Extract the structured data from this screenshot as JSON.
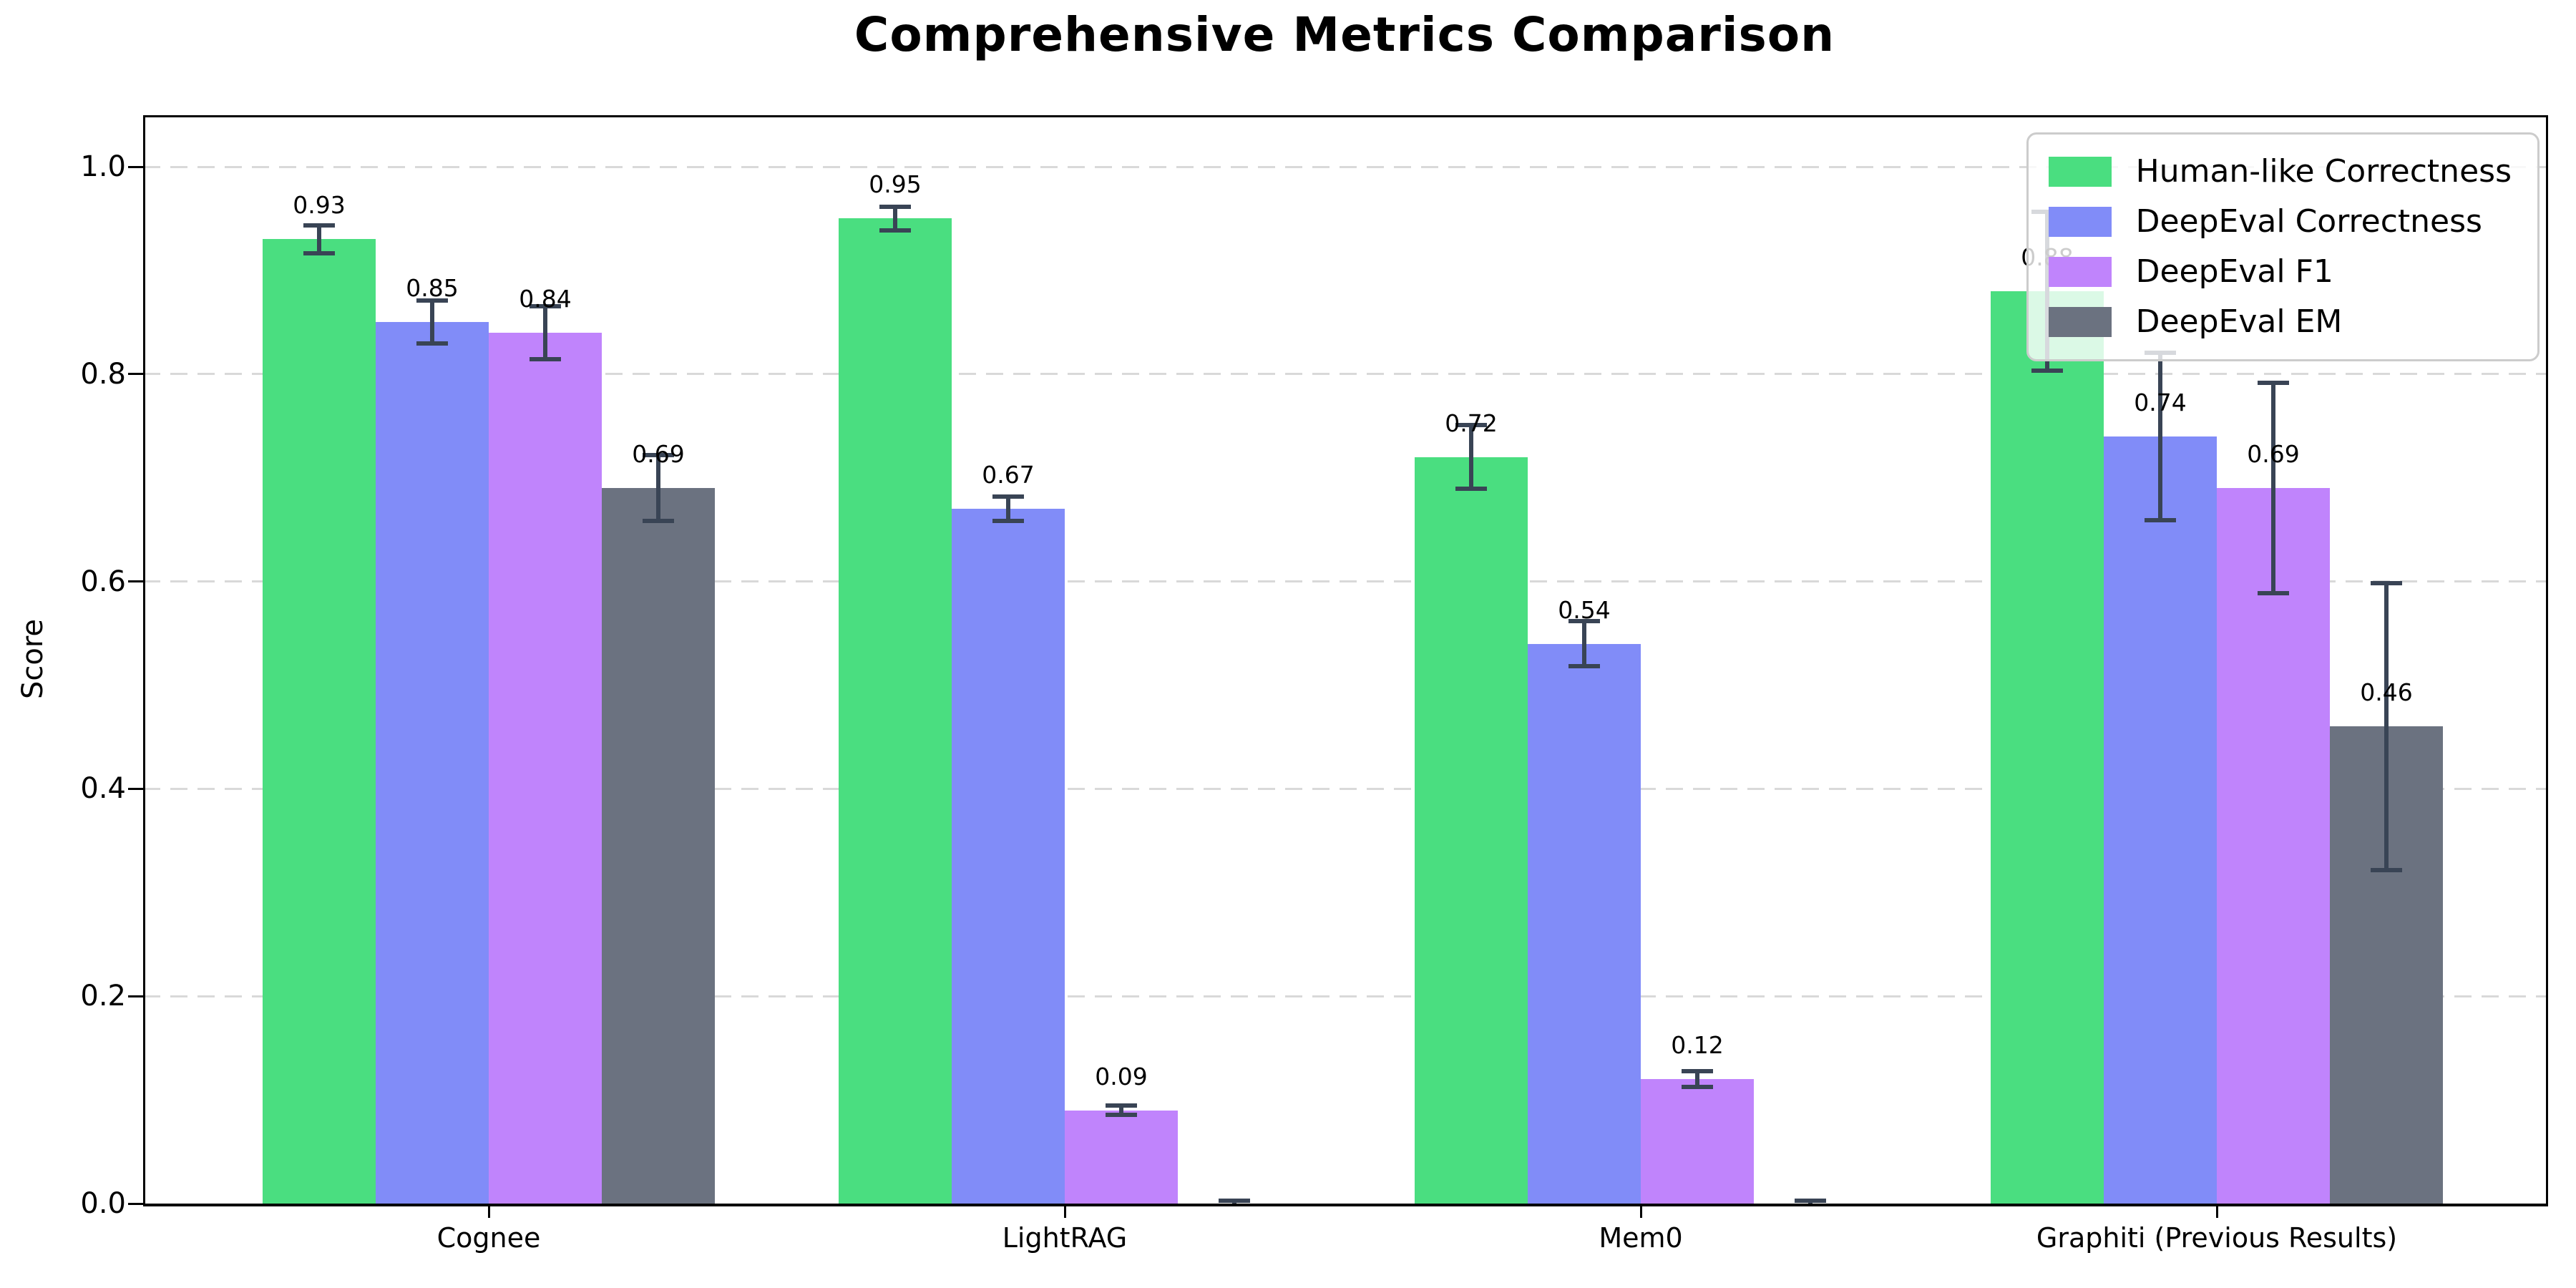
{
  "chart_data": {
    "type": "bar",
    "title": "Comprehensive Metrics Comparison",
    "xlabel": "",
    "ylabel": "Score",
    "ylim": [
      0,
      1.05
    ],
    "yticks": [
      "0.0",
      "0.2",
      "0.4",
      "0.6",
      "0.8",
      "1.0"
    ],
    "grid": "horizontal dashed gridlines at each y tick",
    "legend_position": "upper right inside axes",
    "categories": [
      "Cognee",
      "LightRAG",
      "Mem0",
      "Graphiti (Previous Results)"
    ],
    "series": [
      {
        "name": "Human-like Correctness",
        "color": "#4ade80",
        "values": [
          0.93,
          0.95,
          0.72,
          0.88
        ],
        "errors": [
          0.015,
          0.013,
          0.032,
          0.078
        ],
        "bar_labels": [
          "0.93",
          "0.95",
          "0.72",
          "0.88"
        ]
      },
      {
        "name": "DeepEval Correctness",
        "color": "#818cf8",
        "values": [
          0.85,
          0.67,
          0.54,
          0.74
        ],
        "errors": [
          0.022,
          0.013,
          0.023,
          0.082
        ],
        "bar_labels": [
          "0.85",
          "0.67",
          "0.54",
          "0.74"
        ]
      },
      {
        "name": "DeepEval F1",
        "color": "#c084fc",
        "values": [
          0.84,
          0.09,
          0.12,
          0.69
        ],
        "errors": [
          0.027,
          0.006,
          0.009,
          0.103
        ],
        "bar_labels": [
          "0.84",
          "0.09",
          "0.12",
          "0.69"
        ]
      },
      {
        "name": "DeepEval EM",
        "color": "#6b7280",
        "values": [
          0.69,
          0.0,
          0.0,
          0.46
        ],
        "errors": [
          0.033,
          0.004,
          0.004,
          0.14
        ],
        "bar_labels": [
          "0.69",
          null,
          null,
          "0.46"
        ]
      }
    ],
    "error_bar_color": "#394455",
    "colors": {
      "grid": "#d9d9d9",
      "spine": "#000000",
      "background": "#ffffff"
    }
  }
}
